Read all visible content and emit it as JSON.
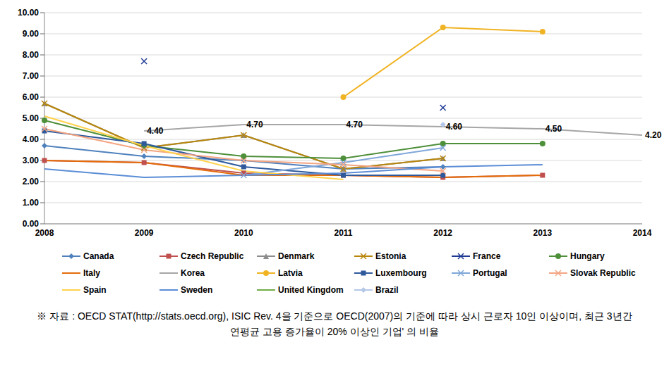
{
  "chart_data": {
    "type": "line",
    "note": "※ 자료 : OECD STAT(http://stats.oecd.org), ISIC Rev. 4을 기준으로 OECD(2007)의 기준에 따라 상시 근로자 10인 이상이며, 최근 3년간 연평균 고용 증가율이 20% 이상인 기업' 의 비율",
    "categories": [
      "2008",
      "2009",
      "2010",
      "2011",
      "2012",
      "2013",
      "2014"
    ],
    "ylim": [
      0,
      10
    ],
    "yticks": [
      {
        "value": 0,
        "label": "0.00"
      },
      {
        "value": 1,
        "label": "1.00"
      },
      {
        "value": 2,
        "label": "2.00"
      },
      {
        "value": 3,
        "label": "3.00"
      },
      {
        "value": 4,
        "label": "4.00"
      },
      {
        "value": 5,
        "label": "5.00"
      },
      {
        "value": 6,
        "label": "6.00"
      },
      {
        "value": 7,
        "label": "7.00"
      },
      {
        "value": 8,
        "label": "8.00"
      },
      {
        "value": 9,
        "label": "9.00"
      },
      {
        "value": 10,
        "label": "10.00"
      }
    ],
    "grid": true,
    "series": [
      {
        "name": "Canada",
        "color": "#4F81BD",
        "marker": "diamond",
        "values": [
          3.7,
          3.2,
          3.0,
          2.6,
          2.7,
          null,
          null
        ]
      },
      {
        "name": "Czech Republic",
        "color": "#C0504D",
        "marker": "square",
        "values": [
          3.0,
          2.9,
          2.4,
          2.3,
          2.2,
          2.3,
          null
        ]
      },
      {
        "name": "Denmark",
        "color": "#8C8C8C",
        "marker": "triangle",
        "values": [
          5.7,
          3.6,
          4.2,
          2.6,
          3.1,
          null,
          null
        ]
      },
      {
        "name": "Estonia",
        "color": "#B8860B",
        "marker": "x",
        "values": [
          5.7,
          3.6,
          4.2,
          2.6,
          3.1,
          null,
          null
        ]
      },
      {
        "name": "France",
        "color": "#1F3A93",
        "marker": "x",
        "values": [
          null,
          7.7,
          null,
          null,
          5.5,
          null,
          null
        ]
      },
      {
        "name": "Hungary",
        "color": "#4E8F3A",
        "marker": "circle",
        "values": [
          4.9,
          3.7,
          3.2,
          3.1,
          3.8,
          3.8,
          null
        ]
      },
      {
        "name": "Italy",
        "color": "#E46C0A",
        "marker": "none",
        "values": [
          3.0,
          2.9,
          2.3,
          2.3,
          2.2,
          2.3,
          null
        ]
      },
      {
        "name": "Korea",
        "color": "#A6A6A6",
        "marker": "none",
        "data_labels": true,
        "values": [
          null,
          4.4,
          4.7,
          4.7,
          4.6,
          4.5,
          4.2
        ],
        "value_labels": [
          null,
          "4.40",
          "4.70",
          "4.70",
          "4.60",
          "4.50",
          "4.20"
        ]
      },
      {
        "name": "Latvia",
        "color": "#F0B323",
        "marker": "circle",
        "values": [
          null,
          null,
          null,
          6.0,
          9.3,
          9.1,
          null
        ]
      },
      {
        "name": "Luxembourg",
        "color": "#2E5A9C",
        "marker": "square",
        "values": [
          4.4,
          3.8,
          2.7,
          2.3,
          2.3,
          null,
          null
        ]
      },
      {
        "name": "Portugal",
        "color": "#7FA7D9",
        "marker": "x",
        "values": [
          null,
          null,
          2.3,
          2.9,
          3.6,
          null,
          null
        ]
      },
      {
        "name": "Slovak Republic",
        "color": "#F4A582",
        "marker": "x",
        "values": [
          4.5,
          3.5,
          3.0,
          2.8,
          2.5,
          null,
          null
        ]
      },
      {
        "name": "Spain",
        "color": "#FFD24D",
        "marker": "none",
        "values": [
          5.1,
          3.7,
          2.5,
          2.1,
          null,
          null,
          null
        ]
      },
      {
        "name": "Sweden",
        "color": "#5B8DD6",
        "marker": "none",
        "values": [
          2.6,
          2.2,
          2.3,
          2.4,
          2.7,
          2.8,
          null
        ]
      },
      {
        "name": "United Kingdom",
        "color": "#70AD47",
        "marker": "none",
        "values": [
          null,
          null,
          null,
          null,
          null,
          null,
          null
        ]
      },
      {
        "name": "Brazil",
        "color": "#B4C7E7",
        "marker": "diamond",
        "values": [
          null,
          null,
          null,
          null,
          4.7,
          null,
          null
        ]
      }
    ]
  }
}
